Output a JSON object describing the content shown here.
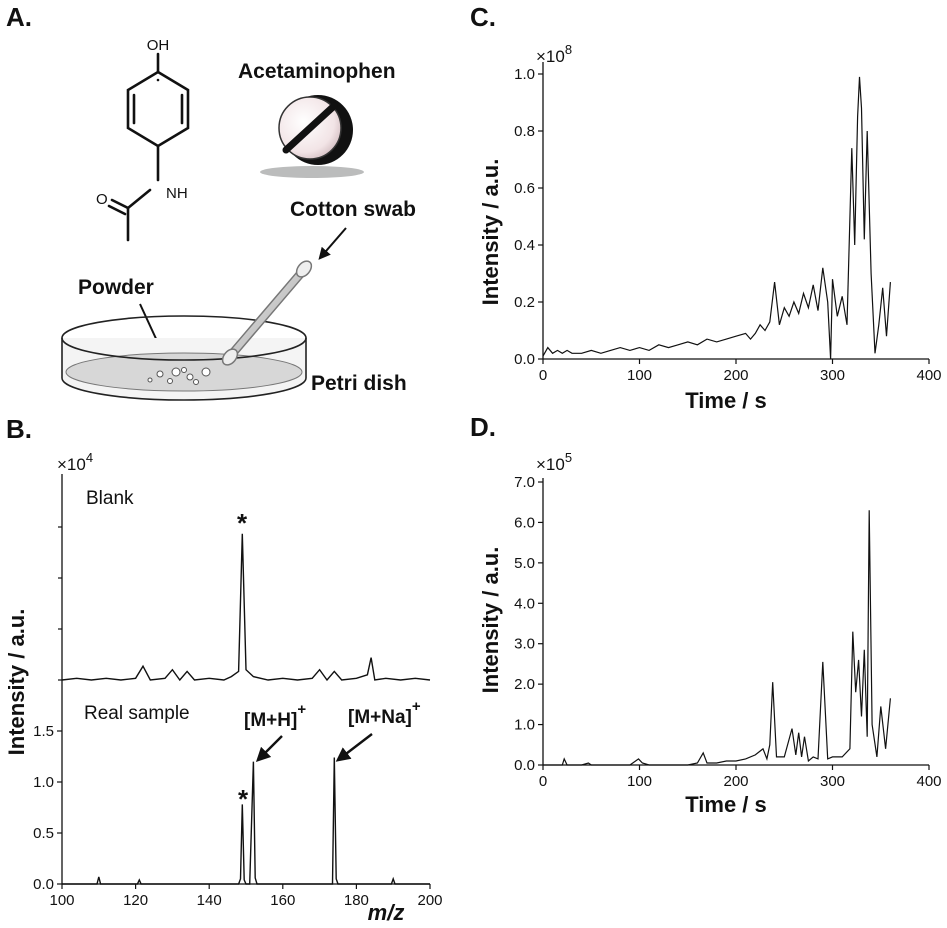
{
  "panels": {
    "a": {
      "label": "A.",
      "oh": "OH",
      "nh": "NH",
      "o": "O",
      "drug": "Acetaminophen",
      "swab": "Cotton swab",
      "powder": "Powder",
      "dish": "Petri dish"
    },
    "b": {
      "label": "B."
    },
    "c": {
      "label": "C."
    },
    "d": {
      "label": "D."
    }
  },
  "chart_data": [
    {
      "id": "B",
      "type": "line",
      "xlabel": "m/z",
      "ylabel": "Intensity / a.u.",
      "multiplier_base": "×10",
      "multiplier_exp": "4",
      "xlim": [
        100,
        200
      ],
      "xticks": [
        "100",
        "120",
        "140",
        "160",
        "180",
        "200"
      ],
      "series": [
        {
          "name": "Blank",
          "ticks_shown": false,
          "peak_marker": "*",
          "x": [
            100,
            104,
            108,
            112,
            116,
            120,
            122,
            124,
            128,
            130,
            132,
            134,
            136,
            140,
            144,
            146,
            148,
            149,
            150,
            152,
            156,
            160,
            164,
            168,
            170,
            172,
            174,
            176,
            180,
            183,
            184,
            185,
            188,
            192,
            196,
            200
          ],
          "y": [
            0.0,
            0.01,
            0.0,
            0.01,
            0.0,
            0.01,
            0.08,
            0.0,
            0.01,
            0.06,
            0.0,
            0.05,
            0.0,
            0.01,
            0.0,
            0.02,
            0.05,
            0.85,
            0.06,
            0.02,
            0.0,
            0.01,
            0.0,
            0.01,
            0.06,
            0.0,
            0.05,
            0.0,
            0.01,
            0.03,
            0.13,
            0.0,
            0.01,
            0.0,
            0.01,
            0.0
          ]
        },
        {
          "name": "Real sample",
          "ylim": [
            0,
            1.7
          ],
          "yticks": [
            "0.0",
            "0.5",
            "1.0",
            "1.5"
          ],
          "peak_marker": "*",
          "annotations": [
            {
              "text": "[M+H]",
              "sup": "+"
            },
            {
              "text": "[M+Na]",
              "sup": "+"
            }
          ],
          "x": [
            100,
            105,
            109.5,
            110,
            110.5,
            115,
            120.5,
            121,
            121.5,
            130,
            140,
            148,
            148.5,
            149,
            149.5,
            150,
            151,
            152,
            152.5,
            153,
            160,
            170,
            173.5,
            174,
            174.5,
            175,
            180,
            189.5,
            190,
            190.5,
            200
          ],
          "y": [
            0.0,
            0.0,
            0.0,
            0.07,
            0.0,
            0.0,
            0.0,
            0.04,
            0.0,
            0.0,
            0.0,
            0.0,
            0.05,
            0.78,
            0.04,
            0.0,
            0.0,
            1.2,
            0.06,
            0.0,
            0.0,
            0.0,
            0.0,
            1.24,
            0.05,
            0.0,
            0.0,
            0.0,
            0.05,
            0.0,
            0.0
          ]
        }
      ]
    },
    {
      "id": "C",
      "type": "line",
      "xlabel": "Time / s",
      "ylabel": "Intensity / a.u.",
      "multiplier_base": "×10",
      "multiplier_exp": "8",
      "xlim": [
        0,
        400
      ],
      "ylim": [
        0,
        1.0
      ],
      "xticks": [
        "0",
        "100",
        "200",
        "300",
        "400"
      ],
      "yticks": [
        "0.0",
        "0.2",
        "0.4",
        "0.6",
        "0.8",
        "1.0"
      ],
      "series": [
        {
          "x": [
            0,
            5,
            10,
            15,
            20,
            25,
            30,
            40,
            50,
            60,
            70,
            80,
            90,
            100,
            110,
            120,
            130,
            140,
            150,
            160,
            170,
            180,
            190,
            200,
            210,
            215,
            220,
            225,
            230,
            235,
            240,
            245,
            250,
            255,
            260,
            265,
            270,
            275,
            280,
            285,
            290,
            295,
            298,
            300,
            305,
            310,
            315,
            320,
            323,
            326,
            328,
            330,
            333,
            336,
            340,
            344,
            348,
            352,
            356,
            360
          ],
          "y": [
            0.01,
            0.04,
            0.02,
            0.03,
            0.02,
            0.03,
            0.02,
            0.02,
            0.03,
            0.02,
            0.03,
            0.04,
            0.03,
            0.04,
            0.03,
            0.05,
            0.04,
            0.05,
            0.06,
            0.05,
            0.07,
            0.06,
            0.07,
            0.08,
            0.09,
            0.07,
            0.09,
            0.12,
            0.1,
            0.13,
            0.27,
            0.12,
            0.18,
            0.15,
            0.2,
            0.16,
            0.23,
            0.18,
            0.26,
            0.17,
            0.32,
            0.2,
            0.0,
            0.28,
            0.15,
            0.22,
            0.12,
            0.74,
            0.4,
            0.85,
            0.99,
            0.88,
            0.42,
            0.8,
            0.3,
            0.02,
            0.12,
            0.25,
            0.08,
            0.27
          ]
        }
      ]
    },
    {
      "id": "D",
      "type": "line",
      "xlabel": "Time / s",
      "ylabel": "Intensity / a.u.",
      "multiplier_base": "×10",
      "multiplier_exp": "5",
      "xlim": [
        0,
        400
      ],
      "ylim": [
        0,
        7.0
      ],
      "xticks": [
        "0",
        "100",
        "200",
        "300",
        "400"
      ],
      "yticks": [
        "0.0",
        "1.0",
        "2.0",
        "3.0",
        "4.0",
        "5.0",
        "6.0",
        "7.0"
      ],
      "series": [
        {
          "x": [
            0,
            10,
            20,
            22,
            25,
            40,
            47,
            50,
            60,
            70,
            80,
            90,
            96,
            99,
            103,
            110,
            130,
            150,
            160,
            166,
            170,
            180,
            190,
            200,
            210,
            220,
            228,
            232,
            235,
            238,
            242,
            250,
            258,
            262,
            265,
            268,
            271,
            275,
            280,
            285,
            290,
            295,
            300,
            310,
            318,
            321,
            324,
            327,
            330,
            333,
            336,
            338,
            341,
            346,
            350,
            355,
            360
          ],
          "y": [
            0.0,
            0.0,
            0.0,
            0.15,
            0.0,
            0.0,
            0.05,
            0.0,
            0.0,
            0.0,
            0.0,
            0.0,
            0.1,
            0.15,
            0.05,
            0.0,
            0.0,
            0.0,
            0.05,
            0.3,
            0.05,
            0.05,
            0.1,
            0.1,
            0.15,
            0.25,
            0.4,
            0.15,
            0.5,
            2.05,
            0.2,
            0.2,
            0.9,
            0.25,
            0.8,
            0.2,
            0.7,
            0.1,
            0.2,
            0.15,
            2.55,
            0.15,
            0.2,
            0.2,
            0.4,
            3.3,
            1.8,
            2.6,
            1.2,
            2.85,
            0.7,
            6.3,
            1.0,
            0.2,
            1.45,
            0.4,
            1.65
          ]
        }
      ]
    }
  ]
}
